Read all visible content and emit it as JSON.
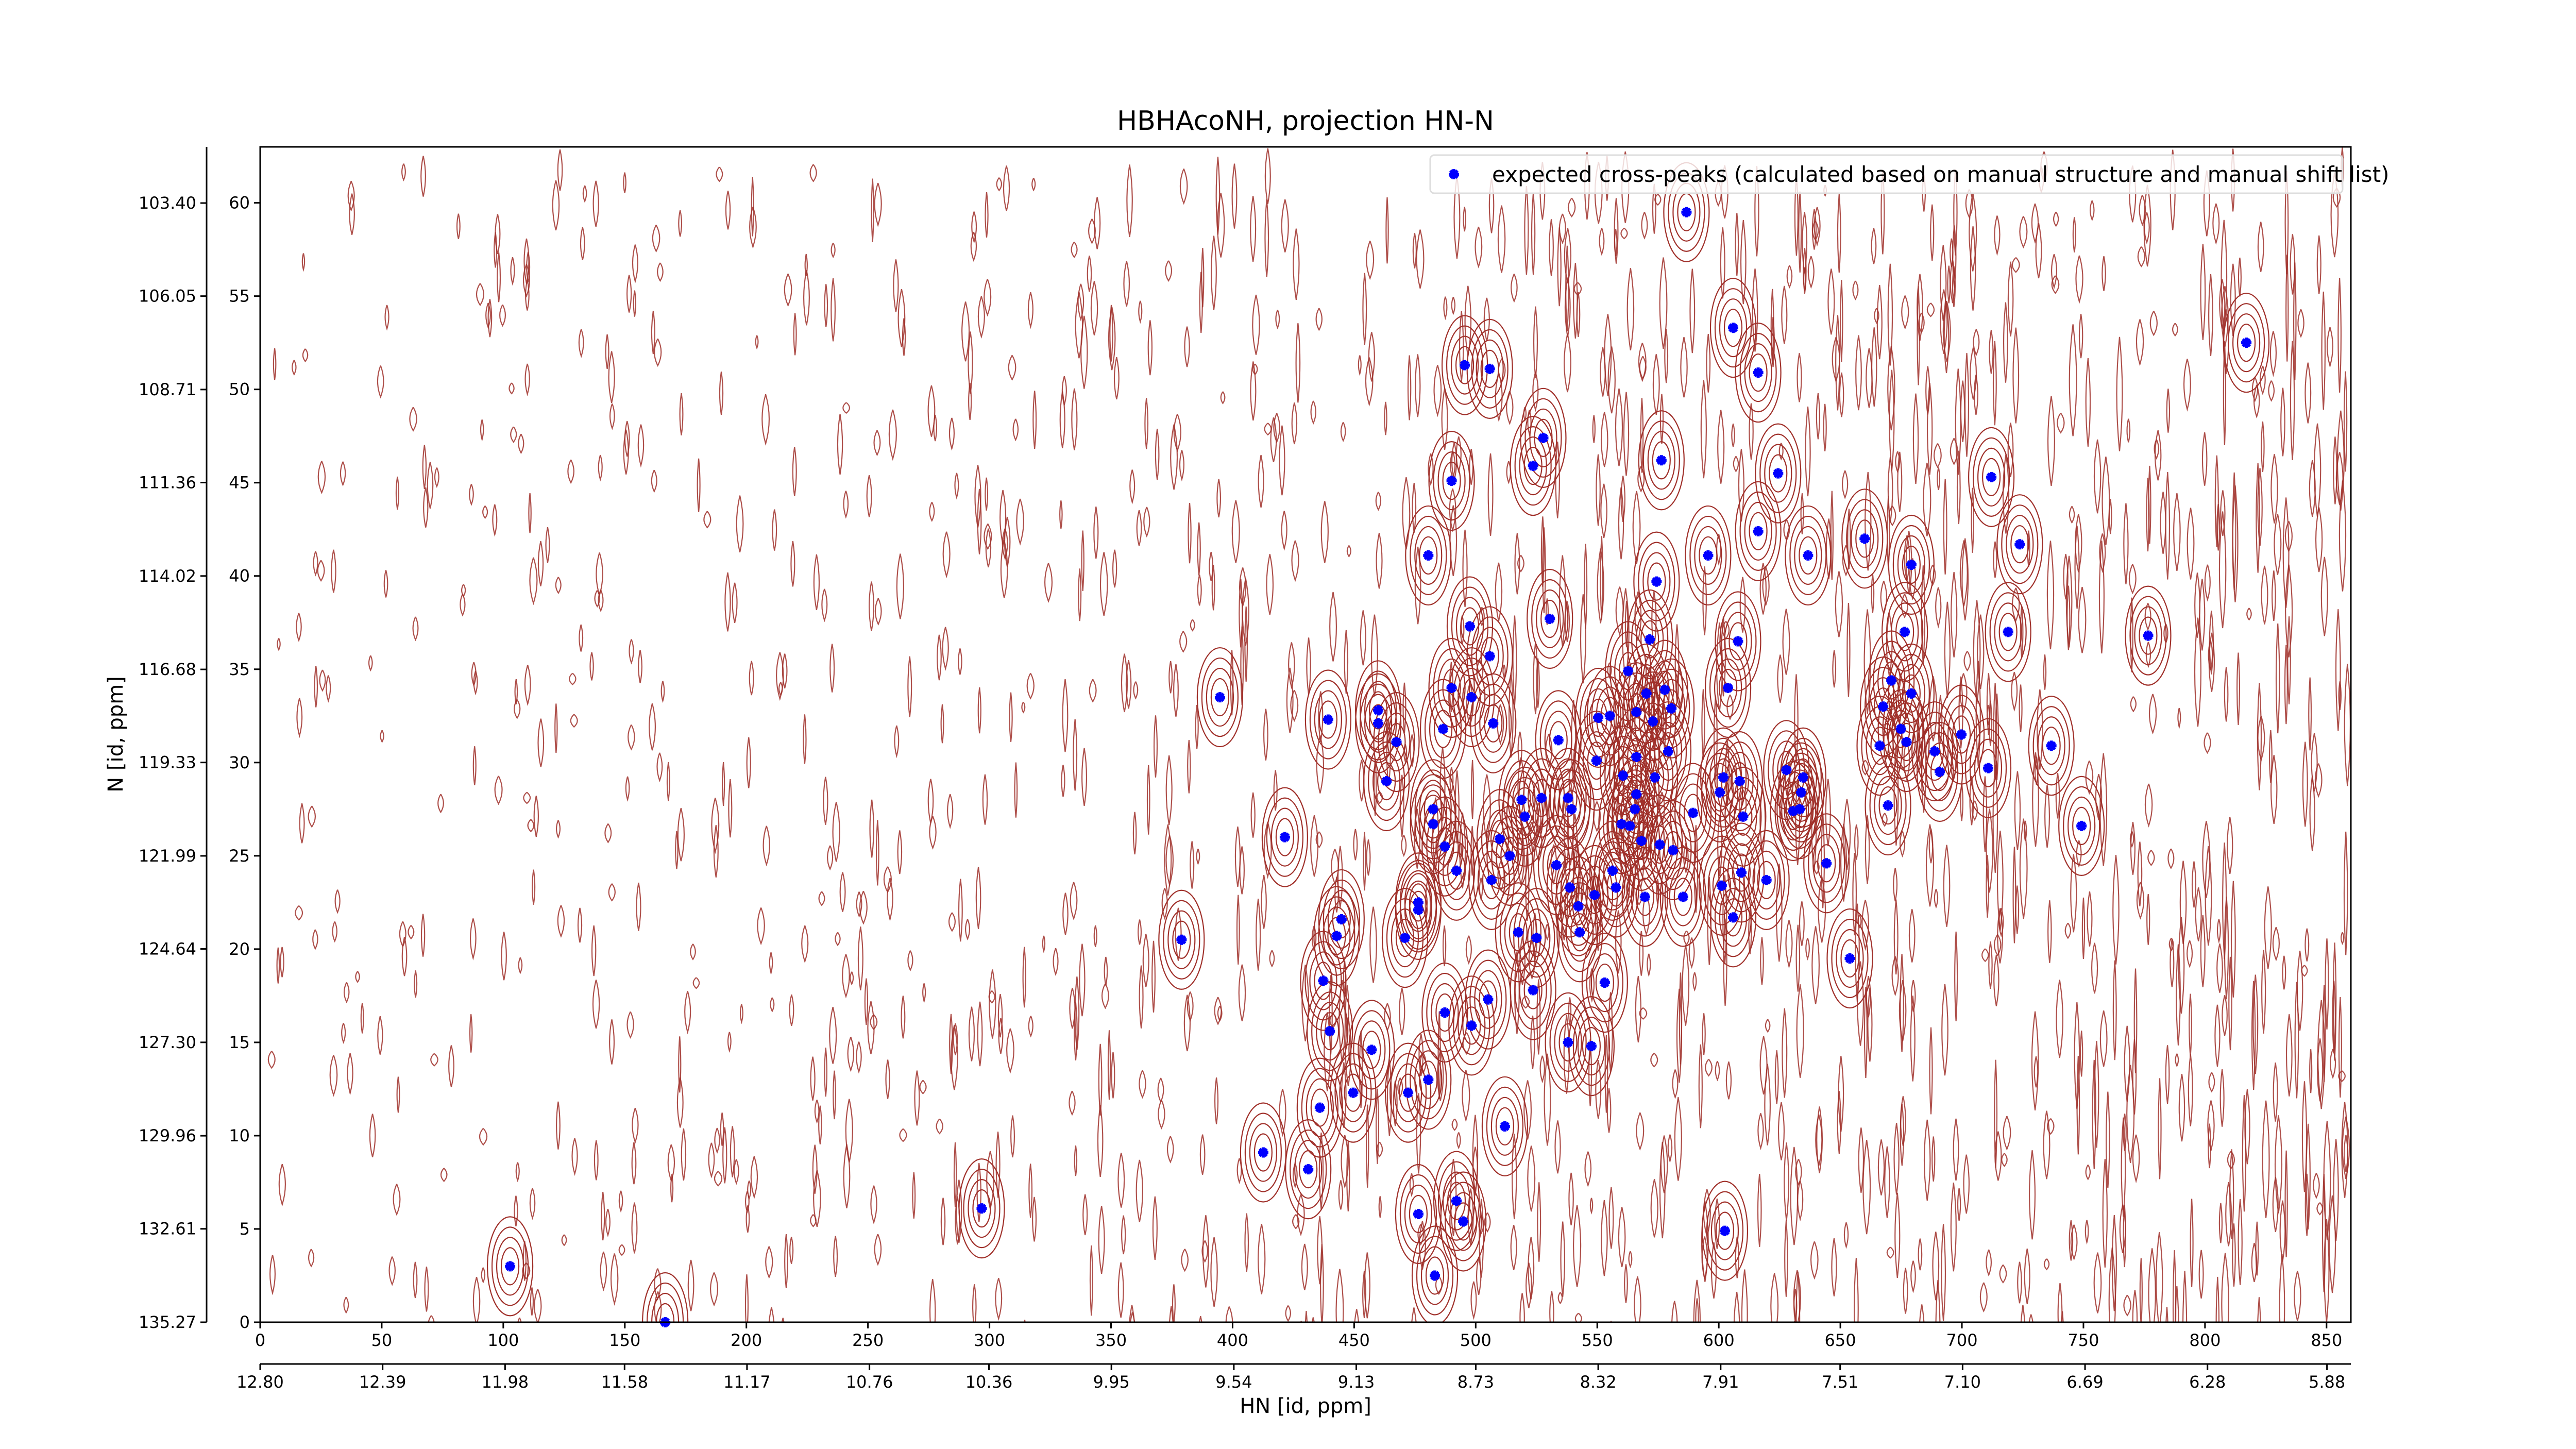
{
  "chart_data": {
    "type": "scatter",
    "title": "HBHAcoNH, projection HN-N",
    "xlabel": "HN [id, ppm]",
    "ylabel": "N [id, ppm]",
    "xlim": [
      0,
      860
    ],
    "ylim": [
      0,
      63
    ],
    "xticks": [
      0,
      50,
      100,
      150,
      200,
      250,
      300,
      350,
      400,
      450,
      500,
      550,
      600,
      650,
      700,
      750,
      800,
      850
    ],
    "yticks": [
      0,
      5,
      10,
      15,
      20,
      25,
      30,
      35,
      40,
      45,
      50,
      55,
      60
    ],
    "x2lim": [
      12.8,
      5.8
    ],
    "x2ticks": [
      {
        "value": 12.8,
        "label": "12.80"
      },
      12.39,
      11.98,
      11.58,
      11.17,
      10.76,
      10.36,
      9.95,
      9.54,
      9.13,
      8.73,
      8.32,
      7.91,
      7.51,
      {
        "value": 7.1,
        "label": "7.10"
      },
      6.69,
      6.28,
      5.88
    ],
    "y2lim": [
      135.27,
      101.8
    ],
    "y2ticks": [
      135.27,
      132.61,
      129.96,
      {
        "value": 127.3,
        "label": "127.30"
      },
      124.64,
      121.99,
      119.33,
      116.68,
      114.02,
      111.36,
      108.71,
      106.05,
      {
        "value": 103.4,
        "label": "103.40"
      }
    ],
    "legend": "upper right",
    "contour_color": "#a0302a",
    "series": [
      {
        "name": "expected cross-peaks (calculated based on manual structure and manual shift list)",
        "color": "#0000ff",
        "x": [
          586.7,
          605.9,
          616.2,
          817.0,
          495.5,
          505.8,
          527.8,
          523.6,
          576.4,
          490.1,
          624.4,
          712.1,
          616.2,
          660.0,
          723.8,
          480.5,
          636.7,
          679.2,
          595.6,
          574.4,
          530.5,
          497.6,
          676.5,
          719.0,
          776.6,
          571.6,
          607.9,
          505.8,
          562.7,
          671.0,
          603.8,
          490.1,
          498.3,
          394.8,
          679.2,
          570.2,
          577.8,
          667.6,
          566.1,
          580.5,
          459.9,
          550.4,
          555.2,
          439.3,
          507.2,
          459.9,
          572.9,
          674.9,
          467.4,
          534.0,
          699.8,
          486.6,
          736.8,
          666.2,
          677.2,
          579.2,
          566.1,
          549.7,
          688.8,
          710.8,
          690.9,
          627.8,
          560.6,
          573.7,
          601.9,
          608.6,
          634.7,
          463.3,
          600.4,
          566.1,
          633.9,
          538.0,
          518.9,
          527.1,
          633.3,
          669.6,
          630.6,
          565.5,
          482.5,
          539.4,
          520.2,
          589.4,
          610.0,
          482.5,
          560.0,
          563.4,
          749.2,
          421.5,
          509.9,
          568.2,
          575.7,
          487.3,
          514.0,
          581.2,
          644.3,
          533.2,
          492.1,
          556.3,
          609.3,
          619.6,
          601.2,
          538.7,
          557.7,
          506.5,
          548.9,
          569.6,
          585.3,
          476.4,
          476.4,
          444.8,
          542.2,
          605.9,
          517.5,
          542.8,
          442.8,
          470.9,
          525.0,
          379.0,
          653.9,
          437.3,
          553.1,
          523.6,
          505.1,
          487.3,
          498.3,
          440.0,
          538.0,
          547.6,
          457.2,
          480.5,
          449.6,
          472.2,
          435.9,
          512.0,
          412.6,
          431.1,
          492.1,
          296.8,
          476.4,
          494.9,
          602.5,
          102.8,
          483.2,
          166.6
        ],
        "values": [
          59.5,
          53.3,
          50.9,
          52.5,
          51.3,
          51.1,
          47.4,
          45.9,
          46.2,
          45.1,
          45.5,
          45.3,
          42.4,
          42.0,
          41.7,
          41.1,
          41.1,
          40.6,
          41.1,
          39.7,
          37.7,
          37.3,
          37.0,
          37.0,
          36.8,
          36.6,
          36.5,
          35.7,
          34.9,
          34.4,
          34.0,
          34.0,
          33.5,
          33.5,
          33.7,
          33.7,
          33.9,
          33.0,
          32.7,
          32.9,
          32.8,
          32.4,
          32.5,
          32.3,
          32.1,
          32.1,
          32.2,
          31.8,
          31.1,
          31.2,
          31.5,
          31.8,
          30.9,
          30.9,
          31.1,
          30.6,
          30.3,
          30.1,
          30.6,
          29.7,
          29.5,
          29.6,
          29.3,
          29.2,
          29.2,
          29.0,
          29.2,
          29.0,
          28.4,
          28.3,
          28.4,
          28.1,
          28.0,
          28.1,
          27.5,
          27.7,
          27.4,
          27.5,
          27.5,
          27.5,
          27.1,
          27.3,
          27.1,
          26.7,
          26.7,
          26.6,
          26.6,
          26.0,
          25.9,
          25.8,
          25.6,
          25.5,
          25.0,
          25.3,
          24.6,
          24.5,
          24.2,
          24.2,
          24.1,
          23.7,
          23.4,
          23.3,
          23.3,
          23.7,
          22.9,
          22.8,
          22.8,
          22.5,
          22.1,
          21.6,
          22.3,
          21.7,
          20.9,
          20.9,
          20.7,
          20.6,
          20.6,
          20.5,
          19.5,
          18.3,
          18.2,
          17.8,
          17.3,
          16.6,
          15.9,
          15.6,
          15.0,
          14.8,
          14.6,
          13.0,
          12.3,
          12.3,
          11.5,
          10.5,
          9.1,
          8.2,
          6.5,
          6.1,
          5.8,
          5.4,
          4.9,
          3.0,
          2.5,
          0.0
        ]
      }
    ]
  }
}
